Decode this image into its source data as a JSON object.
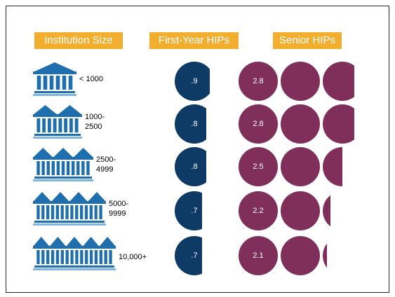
{
  "headers": {
    "institution_size": "Institution Size",
    "first_year": "First-Year HIPs",
    "senior": "Senior HIPs"
  },
  "colors": {
    "header_bg": "#f2ae2e",
    "building": "#1f6fae",
    "building_light": "#7fb6e0",
    "first_year_circle": "#0e3a66",
    "senior_circle": "#7f2f5a"
  },
  "icon": "institution-building-icon",
  "rows": [
    {
      "size": "< 1000",
      "first_year": 0.9,
      "first_year_label": ".9",
      "senior": 2.8,
      "senior_label": "2.8"
    },
    {
      "size": "1000-\n2500",
      "first_year": 0.8,
      "first_year_label": ".8",
      "senior": 2.8,
      "senior_label": "2.8"
    },
    {
      "size": "2500-\n4999",
      "first_year": 0.8,
      "first_year_label": ".8",
      "senior": 2.5,
      "senior_label": "2.5"
    },
    {
      "size": "5000-\n9999",
      "first_year": 0.7,
      "first_year_label": ".7",
      "senior": 2.2,
      "senior_label": "2.2"
    },
    {
      "size": "10,000+",
      "first_year": 0.7,
      "first_year_label": ".7",
      "senior": 2.1,
      "senior_label": "2.1"
    }
  ]
}
